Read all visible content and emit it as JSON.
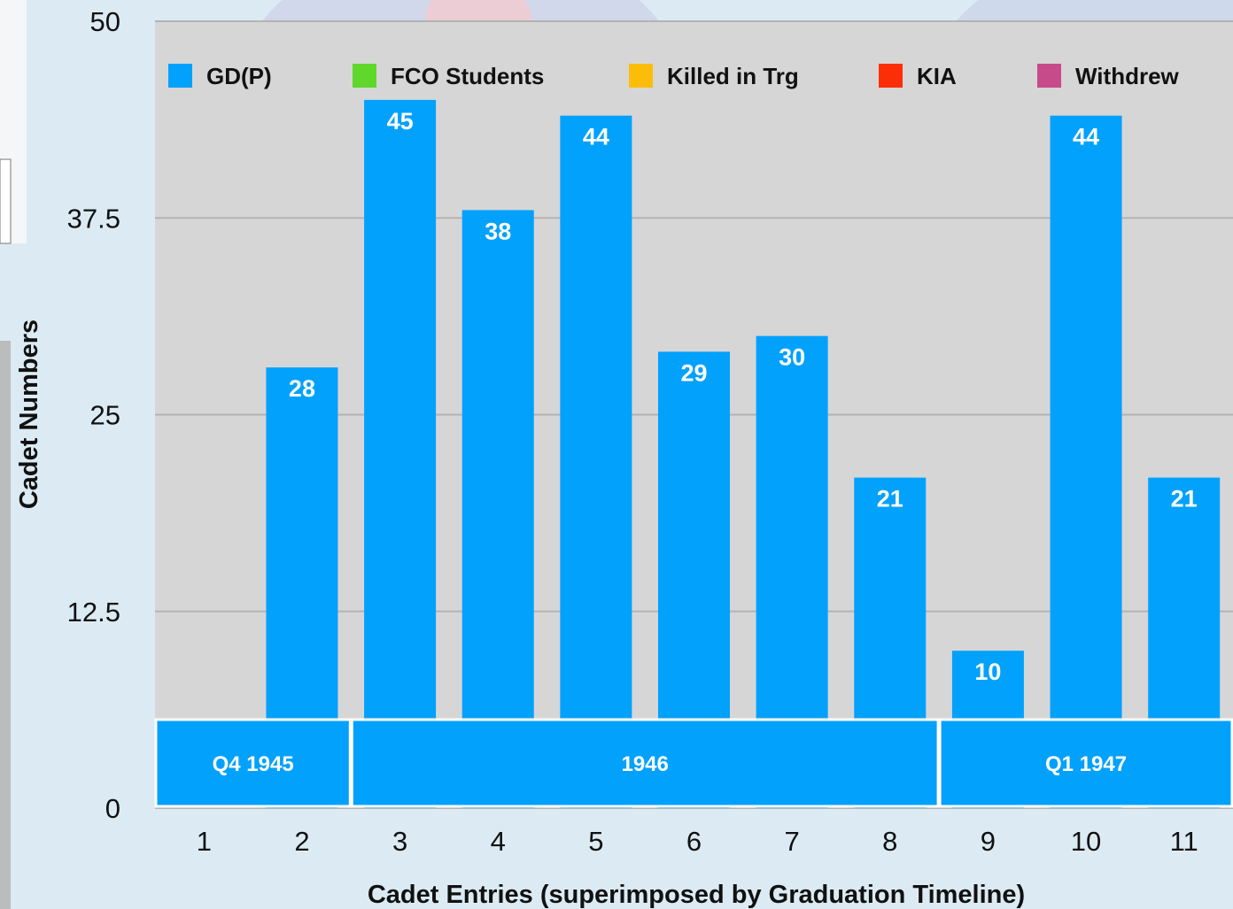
{
  "chart_data": {
    "type": "bar",
    "xlabel": "Cadet Entries (superimposed by Graduation Timeline)",
    "ylabel": "Cadet Numbers",
    "ylim": [
      0,
      50
    ],
    "yticks": [
      "0",
      "12.5",
      "25",
      "37.5",
      "50"
    ],
    "categories": [
      "1",
      "2",
      "3",
      "4",
      "5",
      "6",
      "7",
      "8",
      "9",
      "10",
      "11"
    ],
    "series": [
      {
        "name": "GD(P)",
        "color": "#02a1fc",
        "values": [
          0,
          28,
          45,
          38,
          44,
          29,
          30,
          21,
          10,
          44,
          21
        ]
      }
    ],
    "legend": {
      "placement": "top",
      "items": [
        {
          "label": "GD(P)",
          "color": "#02a1fc"
        },
        {
          "label": "FCO Students",
          "color": "#5fd82b"
        },
        {
          "label": "Killed in Trg",
          "color": "#fbbd0a"
        },
        {
          "label": "KIA",
          "color": "#fb2e07"
        },
        {
          "label": "Withdrew",
          "color": "#c74a8a"
        }
      ]
    },
    "timeline_bands": [
      {
        "label": "Q4 1945",
        "from": "1",
        "to": "2"
      },
      {
        "label": "1946",
        "from": "3",
        "to": "8"
      },
      {
        "label": "Q1 1947",
        "from": "9",
        "to": "11"
      }
    ],
    "grid": true,
    "plot_background": "#d6d6d6",
    "band_color": "#02a1fc"
  }
}
